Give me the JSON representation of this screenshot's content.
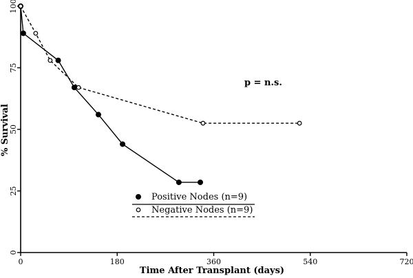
{
  "chart_data": {
    "type": "line",
    "xlabel": "Time After Transplant (days)",
    "ylabel": "% Survival",
    "xlim": [
      0,
      720
    ],
    "ylim": [
      0,
      100
    ],
    "x_ticks": [
      0,
      180,
      360,
      540,
      720
    ],
    "y_ticks": [
      0,
      25,
      50,
      75,
      100
    ],
    "annotation": "p = n.s.",
    "legend_position": "center-bottom",
    "series": [
      {
        "name": "Positive Nodes (n=9)",
        "marker": "filled-circle",
        "line_style": "solid",
        "color": "#000000",
        "x": [
          0,
          5,
          70,
          100,
          145,
          190,
          295,
          335
        ],
        "y": [
          100,
          89,
          78,
          67,
          56,
          44,
          28.5,
          28.5
        ]
      },
      {
        "name": "Negative Nodes (n=9)",
        "marker": "open-circle",
        "line_style": "dashed",
        "color": "#000000",
        "x": [
          0,
          28,
          55,
          108,
          340,
          520
        ],
        "y": [
          100,
          89,
          78,
          67,
          52.5,
          52.5
        ]
      }
    ]
  }
}
